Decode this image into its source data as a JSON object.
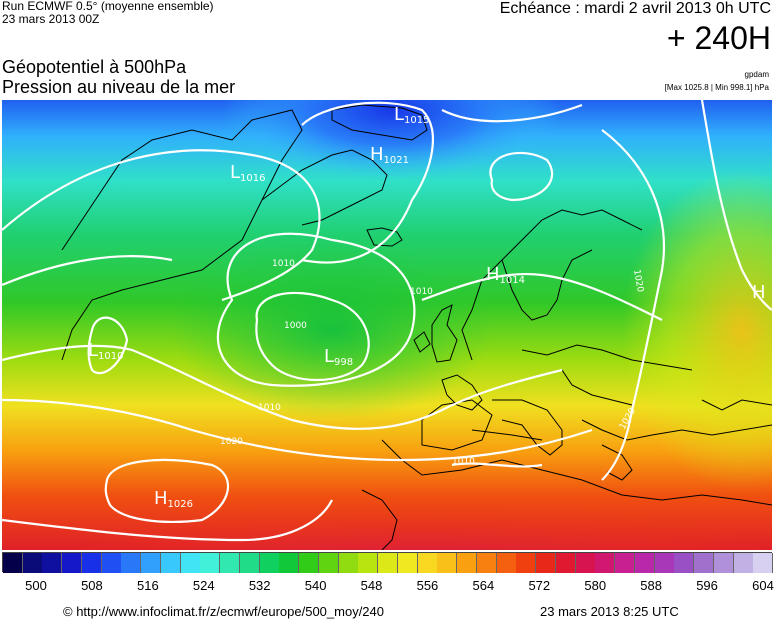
{
  "header": {
    "run": "Run ECMWF 0.5° (moyenne ensemble)",
    "run_date": "23 mars 2013 00Z",
    "title_line1": "Géopotentiel à 500hPa",
    "title_line2": "Pression au niveau de la mer",
    "echeance": "Echéance : mardi 2 avril 2013 0h UTC",
    "horizon": "+ 240H",
    "author": "gpdam",
    "extremes": "[Max 1025.8 | Min 998.1] hPa"
  },
  "pressure_systems": [
    {
      "type": "L",
      "value": "1016"
    },
    {
      "type": "H",
      "value": "1021"
    },
    {
      "type": "L",
      "value": "1015"
    },
    {
      "type": "H",
      "value": "1014"
    },
    {
      "type": "L",
      "value": "1010"
    },
    {
      "type": "L",
      "value": "998"
    },
    {
      "type": "H",
      "value": "1026"
    },
    {
      "type": "H",
      "value": ""
    }
  ],
  "isobar_labels": [
    "1010",
    "1010",
    "1000",
    "1010",
    "1020",
    "1010",
    "1020",
    "1020"
  ],
  "legend": {
    "ticks": [
      "500",
      "508",
      "516",
      "524",
      "532",
      "540",
      "548",
      "556",
      "564",
      "572",
      "580",
      "588",
      "596",
      "604"
    ],
    "colors": [
      "#04004a",
      "#0a0a78",
      "#1010a0",
      "#1418c8",
      "#1830e8",
      "#2050f4",
      "#2878f8",
      "#30a0fc",
      "#38c8fc",
      "#40e4f4",
      "#40f0d8",
      "#30e8b0",
      "#20dc88",
      "#10d060",
      "#10c838",
      "#30cc18",
      "#60d410",
      "#90dc10",
      "#b8e410",
      "#dce818",
      "#f0e820",
      "#f8d820",
      "#f8c018",
      "#f8a010",
      "#f88010",
      "#f46010",
      "#f04010",
      "#e82818",
      "#e01830",
      "#d81450",
      "#d01870",
      "#c82090",
      "#b828a8",
      "#a838b8",
      "#9850c4",
      "#a070cc",
      "#b090d8",
      "#c0b0e4",
      "#d8d0f0"
    ]
  },
  "footer": {
    "url": "© http://www.infoclimat.fr/z/ecmwf/europe/500_moy/240",
    "timestamp": "23 mars 2013  8:25 UTC"
  }
}
